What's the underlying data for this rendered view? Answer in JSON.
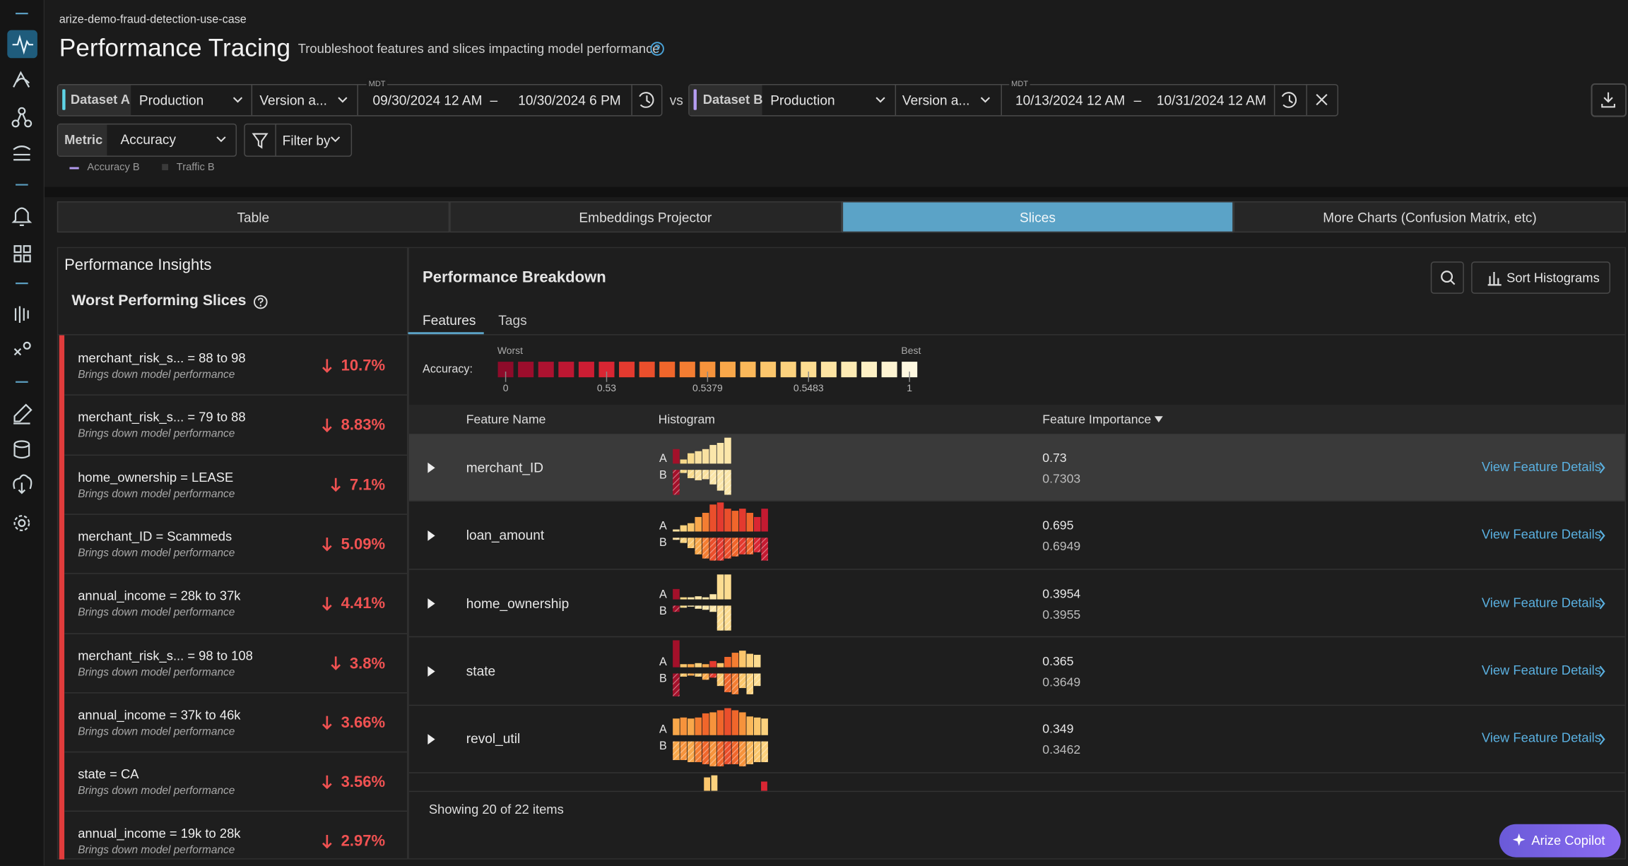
{
  "breadcrumb": "arize-demo-fraud-detection-use-case",
  "header": {
    "title": "Performance Tracing",
    "subtitle": "Troubleshoot features and slices impacting model performance"
  },
  "dataset_a": {
    "label": "Dataset A",
    "environment": "Production",
    "version": "Version a...",
    "timezone": "MDT",
    "start": "09/30/2024 12 AM",
    "separator": "–",
    "end": "10/30/2024 6 PM"
  },
  "vs": "vs",
  "dataset_b": {
    "label": "Dataset B",
    "environment": "Production",
    "version": "Version a...",
    "timezone": "MDT",
    "start": "10/13/2024 12 AM",
    "separator": "–",
    "end": "10/31/2024 12 AM"
  },
  "metric": {
    "label": "Metric",
    "value": "Accuracy"
  },
  "filter": "Filter by",
  "legend": [
    "Accuracy B",
    "Traffic B"
  ],
  "tabs": [
    {
      "label": "Table",
      "active": false
    },
    {
      "label": "Embeddings Projector",
      "active": false
    },
    {
      "label": "Slices",
      "active": true
    },
    {
      "label": "More Charts (Confusion Matrix, etc)",
      "active": false
    }
  ],
  "insights": {
    "title": "Performance Insights",
    "subtitle": "Worst Performing Slices",
    "items": [
      {
        "slice": "merchant_risk_s... = 88 to 98",
        "note": "Brings down model performance",
        "change": "10.7%"
      },
      {
        "slice": "merchant_risk_s... = 79 to 88",
        "note": "Brings down model performance",
        "change": "8.83%"
      },
      {
        "slice": "home_ownership = LEASE",
        "note": "Brings down model performance",
        "change": "7.1%"
      },
      {
        "slice": "merchant_ID = Scammeds",
        "note": "Brings down model performance",
        "change": "5.09%"
      },
      {
        "slice": "annual_income = 28k to 37k",
        "note": "Brings down model performance",
        "change": "4.41%"
      },
      {
        "slice": "merchant_risk_s... = 98 to 108",
        "note": "Brings down model performance",
        "change": "3.8%"
      },
      {
        "slice": "annual_income = 37k to 46k",
        "note": "Brings down model performance",
        "change": "3.66%"
      },
      {
        "slice": "state = CA",
        "note": "Brings down model performance",
        "change": "3.56%"
      },
      {
        "slice": "annual_income = 19k to 28k",
        "note": "Brings down model performance",
        "change": "2.97%"
      }
    ]
  },
  "breakdown": {
    "title": "Performance Breakdown",
    "sort_button": "Sort Histograms",
    "subtabs": [
      "Features",
      "Tags"
    ],
    "scale": {
      "label": "Accuracy:",
      "worst": "Worst",
      "best": "Best",
      "colors": [
        "#8e0b2a",
        "#9c0d2c",
        "#ad1230",
        "#bd1732",
        "#cc1d33",
        "#d92633",
        "#e33a2f",
        "#ea4f2c",
        "#f0662b",
        "#f37d32",
        "#f6933c",
        "#f8a74a",
        "#fab85a",
        "#fbc66c",
        "#fcd27e",
        "#fcdc91",
        "#fde4a3",
        "#fdebb4",
        "#fdf0c4",
        "#fef4d2",
        "#fef8e0"
      ],
      "ticks": [
        "0",
        "0.53",
        "0.5379",
        "0.5483",
        "1"
      ]
    },
    "columns": [
      "Feature Name",
      "Histogram",
      "Feature Importance"
    ],
    "series_labels": [
      "A",
      "B"
    ],
    "rows": [
      {
        "name": "merchant_ID",
        "importance_a": "0.73",
        "importance_b": "0.7303",
        "link": "View Feature Details",
        "hist_a": [
          14,
          4,
          10,
          12,
          14,
          18,
          20,
          25
        ],
        "hist_b": [
          24,
          3,
          8,
          10,
          9,
          14,
          20,
          24
        ],
        "hist_colors": [
          "#a3102a",
          "#f8d98a",
          "#f9dc8f",
          "#fae1a0",
          "#fae1a0",
          "#fbe6aa",
          "#fbe6aa",
          "#fbe6aa"
        ]
      },
      {
        "name": "loan_amount",
        "importance_a": "0.695",
        "importance_b": "0.6949",
        "link": "View Feature Details",
        "hist_a": [
          2,
          6,
          8,
          14,
          18,
          26,
          28,
          22,
          20,
          22,
          18,
          14,
          22
        ],
        "hist_b": [
          2,
          5,
          10,
          16,
          20,
          22,
          22,
          20,
          18,
          16,
          16,
          14,
          22
        ],
        "hist_colors": [
          "#fbe0a0",
          "#fad27e",
          "#f9c56c",
          "#f8a74a",
          "#f37d32",
          "#ea4f2c",
          "#e33a2f",
          "#ea4f2c",
          "#f0662b",
          "#e33a2f",
          "#f0662b",
          "#d92633",
          "#c41a31"
        ]
      },
      {
        "name": "home_ownership",
        "importance_a": "0.3954",
        "importance_b": "0.3955",
        "link": "View Feature Details",
        "hist_a": [
          10,
          2,
          2,
          3,
          2,
          5,
          24,
          24
        ],
        "hist_b": [
          6,
          2,
          1,
          3,
          4,
          6,
          24,
          24
        ],
        "hist_colors": [
          "#a3102a",
          "#f8d98a",
          "#fbe6aa",
          "#fbe6aa",
          "#fbe6aa",
          "#fbe6aa",
          "#fcdc91",
          "#fcdc91"
        ]
      },
      {
        "name": "state",
        "importance_a": "0.365",
        "importance_b": "0.3649",
        "link": "View Feature Details",
        "hist_a": [
          26,
          3,
          3,
          4,
          3,
          6,
          4,
          10,
          14,
          16,
          13,
          12
        ],
        "hist_b": [
          22,
          3,
          2,
          3,
          6,
          4,
          12,
          18,
          20,
          14,
          20,
          12
        ],
        "hist_colors": [
          "#a3102a",
          "#fbc66c",
          "#f8a74a",
          "#fcd27e",
          "#f8a74a",
          "#e33a2f",
          "#fbc66c",
          "#f0662b",
          "#f37d32",
          "#fbc66c",
          "#fcd27e",
          "#fcdc91"
        ]
      },
      {
        "name": "revol_util",
        "importance_a": "0.349",
        "importance_b": "0.3462",
        "link": "View Feature Details",
        "hist_a": [
          16,
          17,
          16,
          17,
          21,
          22,
          24,
          26,
          24,
          22,
          18,
          17,
          16
        ],
        "hist_b": [
          18,
          18,
          20,
          20,
          22,
          24,
          24,
          22,
          22,
          24,
          22,
          20,
          20
        ],
        "hist_colors": [
          "#f8a74a",
          "#f6933c",
          "#f8a74a",
          "#f37d32",
          "#f0662b",
          "#f6933c",
          "#f0662b",
          "#ea4f2c",
          "#f0662b",
          "#f6933c",
          "#fab85a",
          "#fbc66c",
          "#fcd27e"
        ]
      }
    ],
    "footer": "Showing 20 of 22 items"
  },
  "copilot": "Arize Copilot"
}
